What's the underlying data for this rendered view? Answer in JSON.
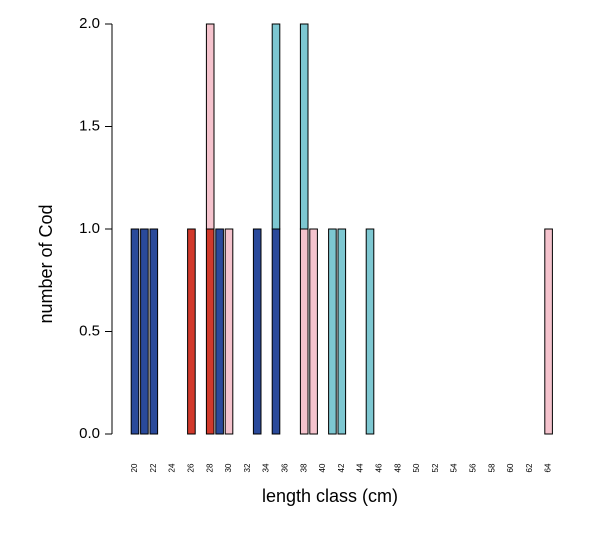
{
  "chart_data": {
    "type": "stacked_bar",
    "x_label": "length class (cm)",
    "y_label": "number of Cod",
    "categories": [
      "20",
      null,
      "22",
      null,
      "24",
      null,
      "26",
      null,
      "28",
      null,
      "30",
      null,
      "32",
      null,
      "34",
      null,
      "36",
      null,
      "38",
      null,
      "40",
      null,
      "42",
      null,
      "44",
      null,
      "46",
      null,
      "48",
      null,
      "50",
      null,
      "52",
      null,
      "54",
      null,
      "56",
      null,
      "58",
      null,
      "60",
      null,
      "62",
      null,
      "64"
    ],
    "series": [
      {
        "color": "#2a4a9b",
        "values": [
          1,
          1,
          1,
          0,
          0,
          0,
          0,
          0,
          0,
          1,
          0,
          0,
          0,
          1,
          0,
          1,
          0,
          0,
          0,
          0,
          0,
          0,
          0,
          0,
          0,
          0,
          0,
          0,
          0,
          0,
          0,
          0,
          0,
          0,
          0,
          0,
          0,
          0,
          0,
          0,
          0,
          0,
          0,
          0,
          0
        ]
      },
      {
        "color": "#d1392b",
        "values": [
          0,
          0,
          0,
          0,
          0,
          0,
          1,
          0,
          1,
          0,
          0,
          0,
          0,
          0,
          0,
          0,
          0,
          0,
          0,
          0,
          0,
          0,
          0,
          0,
          0,
          0,
          0,
          0,
          0,
          0,
          0,
          0,
          0,
          0,
          0,
          0,
          0,
          0,
          0,
          0,
          0,
          0,
          0,
          0,
          0
        ]
      },
      {
        "color": "#f5c3cd",
        "values": [
          0,
          0,
          0,
          0,
          0,
          0,
          0,
          0,
          1,
          0,
          1,
          0,
          0,
          0,
          0,
          0,
          0,
          0,
          1,
          1,
          0,
          0,
          0,
          0,
          0,
          0,
          0,
          0,
          0,
          0,
          0,
          0,
          0,
          0,
          0,
          0,
          0,
          0,
          0,
          0,
          0,
          0,
          0,
          0,
          1
        ]
      },
      {
        "color": "#7dc7d1",
        "values": [
          0,
          0,
          0,
          0,
          0,
          0,
          0,
          0,
          0,
          0,
          0,
          0,
          0,
          0,
          0,
          1,
          0,
          0,
          1,
          0,
          0,
          1,
          1,
          0,
          0,
          1,
          0,
          0,
          0,
          0,
          0,
          0,
          0,
          0,
          0,
          0,
          0,
          0,
          0,
          0,
          0,
          0,
          0,
          0,
          0
        ]
      }
    ],
    "ylim": [
      0,
      2
    ],
    "yticks": [
      {
        "value": 0,
        "label": "0.0"
      },
      {
        "value": 0.5,
        "label": "0.5"
      },
      {
        "value": 1,
        "label": "1.0"
      },
      {
        "value": 1.5,
        "label": "1.5"
      },
      {
        "value": 2,
        "label": "2.0"
      }
    ]
  }
}
